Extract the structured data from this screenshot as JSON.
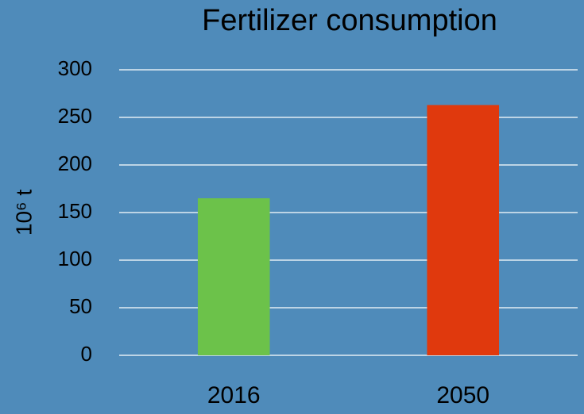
{
  "chart_data": {
    "type": "bar",
    "title": "Fertilizer consumption",
    "y_label": "10⁶ t",
    "categories": [
      "2016",
      "2050"
    ],
    "values": [
      165,
      263
    ],
    "colors": [
      "#6cc24a",
      "#e0390d"
    ],
    "ylim": [
      0,
      300
    ],
    "yticks": [
      0,
      50,
      100,
      150,
      200,
      250,
      300
    ],
    "grid": true
  }
}
